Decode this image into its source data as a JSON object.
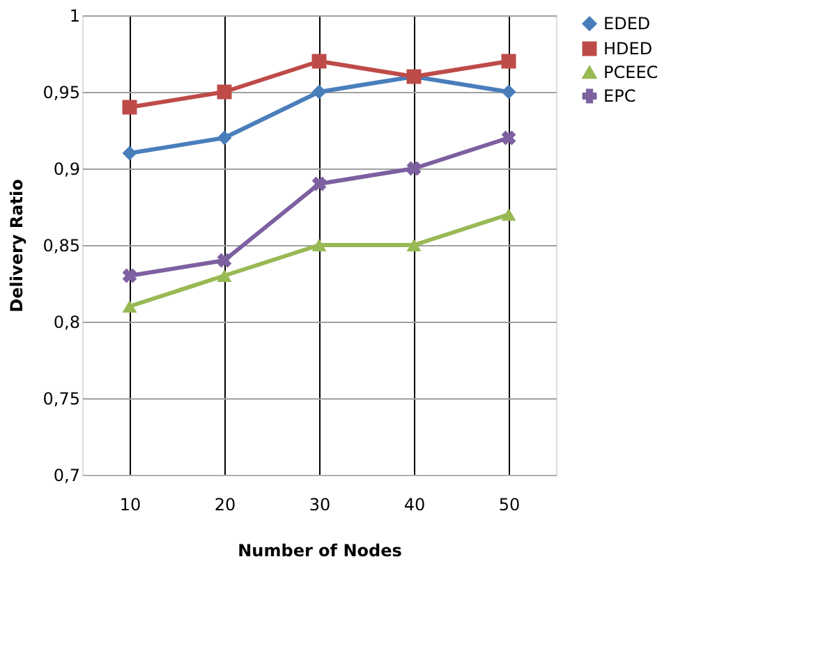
{
  "chart_data": {
    "type": "line",
    "xlabel": "Number of Nodes",
    "ylabel": "Delivery Ratio",
    "categories": [
      "10",
      "20",
      "30",
      "40",
      "50"
    ],
    "series": [
      {
        "name": "EDED",
        "color": "#4a7ebb",
        "marker": "diamond",
        "values": [
          0.91,
          0.92,
          0.95,
          0.96,
          0.95
        ]
      },
      {
        "name": "HDED",
        "color": "#be4b48",
        "marker": "square",
        "values": [
          0.94,
          0.95,
          0.97,
          0.96,
          0.97
        ]
      },
      {
        "name": "PCEEC",
        "color": "#98b954",
        "marker": "triangle",
        "values": [
          0.81,
          0.83,
          0.85,
          0.85,
          0.87
        ]
      },
      {
        "name": "EPC",
        "color": "#7d60a0",
        "marker": "cross",
        "values": [
          0.83,
          0.84,
          0.89,
          0.9,
          0.92
        ]
      }
    ],
    "ylim": [
      0.7,
      1
    ],
    "yticks": [
      {
        "value": 0.7,
        "label": "0,7"
      },
      {
        "value": 0.75,
        "label": "0,75"
      },
      {
        "value": 0.8,
        "label": "0,8"
      },
      {
        "value": 0.85,
        "label": "0,85"
      },
      {
        "value": 0.9,
        "label": "0,9"
      },
      {
        "value": 0.95,
        "label": "0,95"
      },
      {
        "value": 1,
        "label": "1"
      }
    ],
    "grid": true,
    "legend": "right",
    "line_style": "solid"
  }
}
